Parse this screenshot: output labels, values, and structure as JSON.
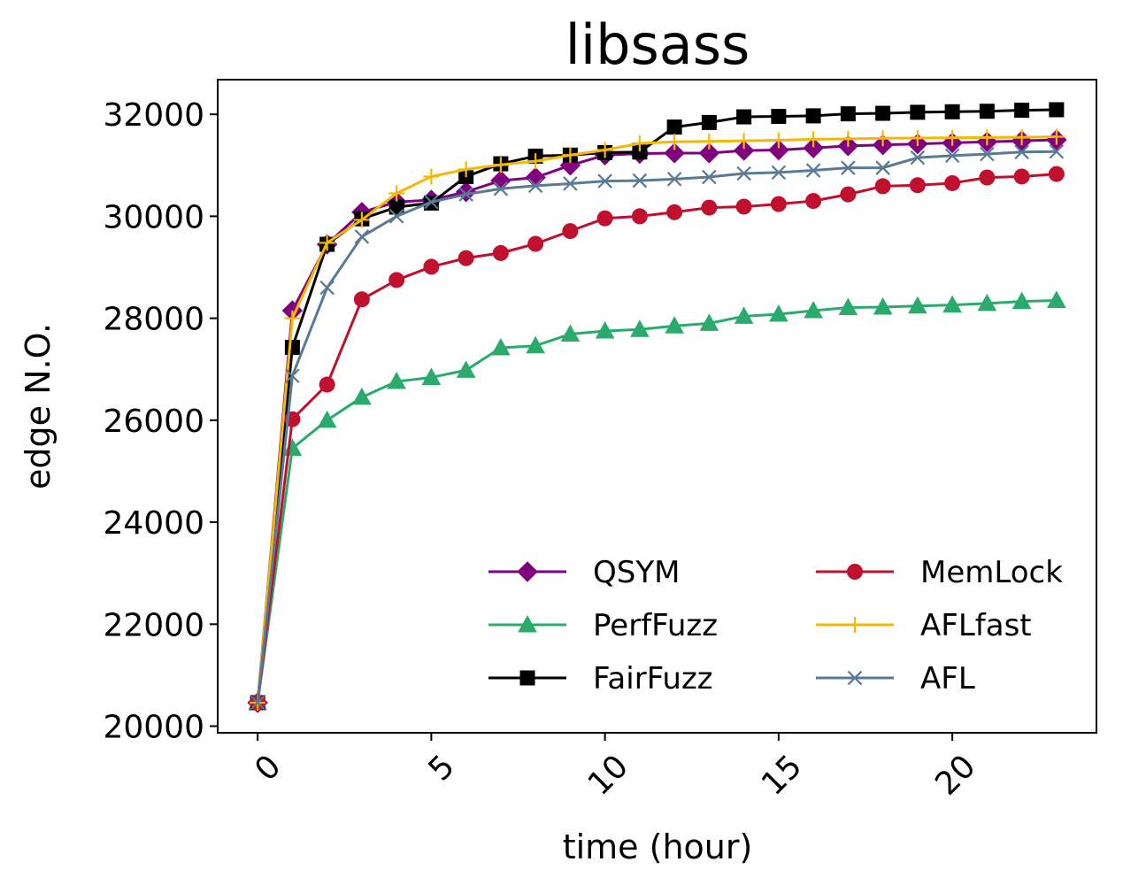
{
  "chart_data": {
    "type": "line",
    "title": "libsass",
    "xlabel": "time (hour)",
    "ylabel": "edge N.O.",
    "xlim": [
      -1.15,
      24.15
    ],
    "ylim": [
      19870,
      32680
    ],
    "xticks": [
      0,
      5,
      10,
      15,
      20
    ],
    "xtick_labels": [
      "0",
      "5",
      "10",
      "15",
      "20"
    ],
    "xtick_rotation": -45,
    "yticks": [
      20000,
      22000,
      24000,
      26000,
      28000,
      30000,
      32000
    ],
    "ytick_labels": [
      "20000",
      "22000",
      "24000",
      "26000",
      "28000",
      "30000",
      "32000"
    ],
    "grid": false,
    "legend_position": "lower-right",
    "legend_columns": 2,
    "x": [
      0,
      1,
      2,
      3,
      4,
      5,
      6,
      7,
      8,
      9,
      10,
      11,
      12,
      13,
      14,
      15,
      16,
      17,
      18,
      19,
      20,
      21,
      22,
      23
    ],
    "series": [
      {
        "name": "QSYM",
        "color": "#800080",
        "marker": "diamond",
        "values": [
          20460,
          28150,
          29450,
          30080,
          30280,
          30320,
          30480,
          30700,
          30760,
          31000,
          31200,
          31230,
          31240,
          31240,
          31290,
          31300,
          31340,
          31380,
          31400,
          31420,
          31440,
          31460,
          31480,
          31500
        ]
      },
      {
        "name": "PerfFuzz",
        "color": "#2aab6b",
        "marker": "triangle",
        "values": [
          20460,
          25450,
          26000,
          26450,
          26760,
          26840,
          26980,
          27420,
          27460,
          27690,
          27750,
          27780,
          27850,
          27900,
          28040,
          28080,
          28150,
          28210,
          28220,
          28240,
          28260,
          28290,
          28330,
          28350
        ]
      },
      {
        "name": "FairFuzz",
        "color": "#000000",
        "marker": "square",
        "values": [
          20460,
          27430,
          29450,
          29950,
          30180,
          30260,
          30780,
          31030,
          31180,
          31200,
          31250,
          31260,
          31750,
          31840,
          31950,
          31960,
          31970,
          32010,
          32020,
          32040,
          32050,
          32060,
          32080,
          32090
        ]
      },
      {
        "name": "MemLock",
        "color": "#c0102e",
        "marker": "circle",
        "values": [
          20460,
          26020,
          26700,
          28370,
          28750,
          29010,
          29180,
          29280,
          29460,
          29710,
          29960,
          30000,
          30080,
          30170,
          30190,
          30240,
          30300,
          30430,
          30590,
          30610,
          30650,
          30760,
          30780,
          30830
        ]
      },
      {
        "name": "AFLfast",
        "color": "#f5b800",
        "marker": "plus",
        "values": [
          20460,
          28000,
          29480,
          29930,
          30450,
          30780,
          30920,
          31010,
          31080,
          31200,
          31300,
          31430,
          31460,
          31470,
          31480,
          31490,
          31510,
          31520,
          31530,
          31535,
          31540,
          31545,
          31550,
          31560
        ]
      },
      {
        "name": "AFL",
        "color": "#587a94",
        "marker": "x",
        "values": [
          20460,
          26870,
          28600,
          29600,
          30000,
          30280,
          30430,
          30540,
          30600,
          30640,
          30690,
          30700,
          30730,
          30770,
          30840,
          30860,
          30900,
          30950,
          30950,
          31150,
          31190,
          31220,
          31260,
          31270
        ]
      }
    ]
  }
}
